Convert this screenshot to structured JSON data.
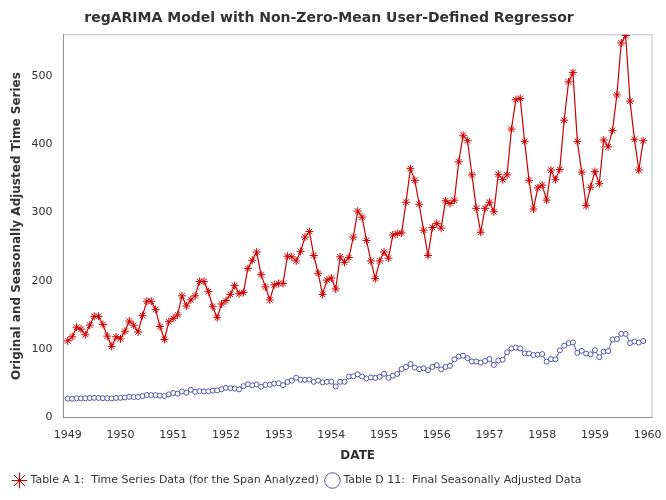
{
  "chart_data": {
    "type": "line",
    "title": "regARIMA Model with Non-Zero-Mean User-Defined Regressor",
    "xlabel": "DATE",
    "ylabel": "Original and Seasonally Adjusted Time Series",
    "xlim": [
      1948.917,
      1960.083
    ],
    "ylim": [
      0,
      560
    ],
    "xticks": [
      1949,
      1950,
      1951,
      1952,
      1953,
      1954,
      1955,
      1956,
      1957,
      1958,
      1959,
      1960
    ],
    "yticks": [
      0,
      100,
      200,
      300,
      400,
      500
    ],
    "grid": false,
    "legend": "lower left",
    "x": [
      1949,
      1949.083333,
      1949.166667,
      1949.25,
      1949.333333,
      1949.416667,
      1949.5,
      1949.583333,
      1949.666667,
      1949.75,
      1949.833333,
      1949.916667,
      1950,
      1950.083333,
      1950.166667,
      1950.25,
      1950.333333,
      1950.416667,
      1950.5,
      1950.583333,
      1950.666667,
      1950.75,
      1950.833333,
      1950.916667,
      1951,
      1951.083333,
      1951.166667,
      1951.25,
      1951.333333,
      1951.416667,
      1951.5,
      1951.583333,
      1951.666667,
      1951.75,
      1951.833333,
      1951.916667,
      1952,
      1952.083333,
      1952.166667,
      1952.25,
      1952.333333,
      1952.416667,
      1952.5,
      1952.583333,
      1952.666667,
      1952.75,
      1952.833333,
      1952.916667,
      1953,
      1953.083333,
      1953.166667,
      1953.25,
      1953.333333,
      1953.416667,
      1953.5,
      1953.583333,
      1953.666667,
      1953.75,
      1953.833333,
      1953.916667,
      1954,
      1954.083333,
      1954.166667,
      1954.25,
      1954.333333,
      1954.416667,
      1954.5,
      1954.583333,
      1954.666667,
      1954.75,
      1954.833333,
      1954.916667,
      1955,
      1955.083333,
      1955.166667,
      1955.25,
      1955.333333,
      1955.416667,
      1955.5,
      1955.583333,
      1955.666667,
      1955.75,
      1955.833333,
      1955.916667,
      1956,
      1956.083333,
      1956.166667,
      1956.25,
      1956.333333,
      1956.416667,
      1956.5,
      1956.583333,
      1956.666667,
      1956.75,
      1956.833333,
      1956.916667,
      1957,
      1957.083333,
      1957.166667,
      1957.25,
      1957.333333,
      1957.416667,
      1957.5,
      1957.583333,
      1957.666667,
      1957.75,
      1957.833333,
      1957.916667,
      1958,
      1958.083333,
      1958.166667,
      1958.25,
      1958.333333,
      1958.416667,
      1958.5,
      1958.583333,
      1958.666667,
      1958.75,
      1958.833333,
      1958.916667,
      1959,
      1959.083333,
      1959.166667,
      1959.25,
      1959.333333,
      1959.416667,
      1959.5,
      1959.583333,
      1959.666667,
      1959.75,
      1959.833333,
      1959.916667
    ],
    "series": [
      {
        "name": "Table A 1:  Time Series Data (for the Span Analyzed)",
        "color": "#CC0000",
        "marker": "star",
        "values": [
          112,
          118,
          132,
          129,
          121,
          135,
          148,
          148,
          136,
          119,
          104,
          118,
          115,
          126,
          141,
          135,
          125,
          149,
          170,
          170,
          158,
          133,
          114,
          140,
          145,
          150,
          178,
          163,
          172,
          178,
          199,
          199,
          184,
          162,
          146,
          166,
          171,
          180,
          193,
          181,
          183,
          218,
          230,
          242,
          209,
          191,
          172,
          194,
          196,
          196,
          236,
          235,
          229,
          243,
          264,
          272,
          237,
          211,
          180,
          201,
          204,
          188,
          235,
          227,
          234,
          264,
          302,
          293,
          259,
          229,
          203,
          229,
          242,
          233,
          267,
          269,
          270,
          315,
          364,
          347,
          312,
          274,
          237,
          278,
          284,
          277,
          317,
          313,
          318,
          374,
          413,
          405,
          355,
          306,
          271,
          306,
          315,
          301,
          356,
          348,
          355,
          422,
          465,
          467,
          404,
          347,
          305,
          336,
          340,
          318,
          362,
          348,
          363,
          435,
          491,
          505,
          404,
          359,
          310,
          337,
          360,
          342,
          406,
          396,
          420,
          472,
          548,
          559,
          463,
          407,
          362,
          405
        ]
      },
      {
        "name": "Table D 11:  Final Seasonally Adjusted Data",
        "color": "#5555AA",
        "marker": "circle",
        "values": [
          27.5,
          27.3,
          27.8,
          27.8,
          27.9,
          28.3,
          28.6,
          28.5,
          28.2,
          28.1,
          27.8,
          28.4,
          28.6,
          29.1,
          30.2,
          29.8,
          29.9,
          31.3,
          32.7,
          32.6,
          32.5,
          31.8,
          31.3,
          33.7,
          35.7,
          34.6,
          37.9,
          36.0,
          40.5,
          37.3,
          38.4,
          38.0,
          38.1,
          39.2,
          39.5,
          41.2,
          43.2,
          42.8,
          42.2,
          41.0,
          45.7,
          48.5,
          47.0,
          48.3,
          44.9,
          47.7,
          47.9,
          49.4,
          50.0,
          47.2,
          51.9,
          53.8,
          58.1,
          55.1,
          55.0,
          55.4,
          52.1,
          53.9,
          51.2,
          52.1,
          52.3,
          45.4,
          52.1,
          52.1,
          59.7,
          60.1,
          63.0,
          59.8,
          57.1,
          58.5,
          57.8,
          59.5,
          63.8,
          57.9,
          61.0,
          63.6,
          70.8,
          73.7,
          78.1,
          72.9,
          70.5,
          71.8,
          69.0,
          73.8,
          76.4,
          70.3,
          73.8,
          75.4,
          84.9,
          89.0,
          90.3,
          86.7,
          81.9,
          81.8,
          80.2,
          82.6,
          85.5,
          76.8,
          83.3,
          84.4,
          95.4,
          101.0,
          102.2,
          100.9,
          93.7,
          93.6,
          91.3,
          91.8,
          92.6,
          81.6,
          85.2,
          84.9,
          98.2,
          104.9,
          108.8,
          109.7,
          94.4,
          97.5,
          93.4,
          92.4,
          98.4,
          88.2,
          96.4,
          97.1,
          114.0,
          114.7,
          122.3,
          122.2,
          108.8,
          111.1,
          109.6,
          111.8
        ]
      }
    ]
  }
}
